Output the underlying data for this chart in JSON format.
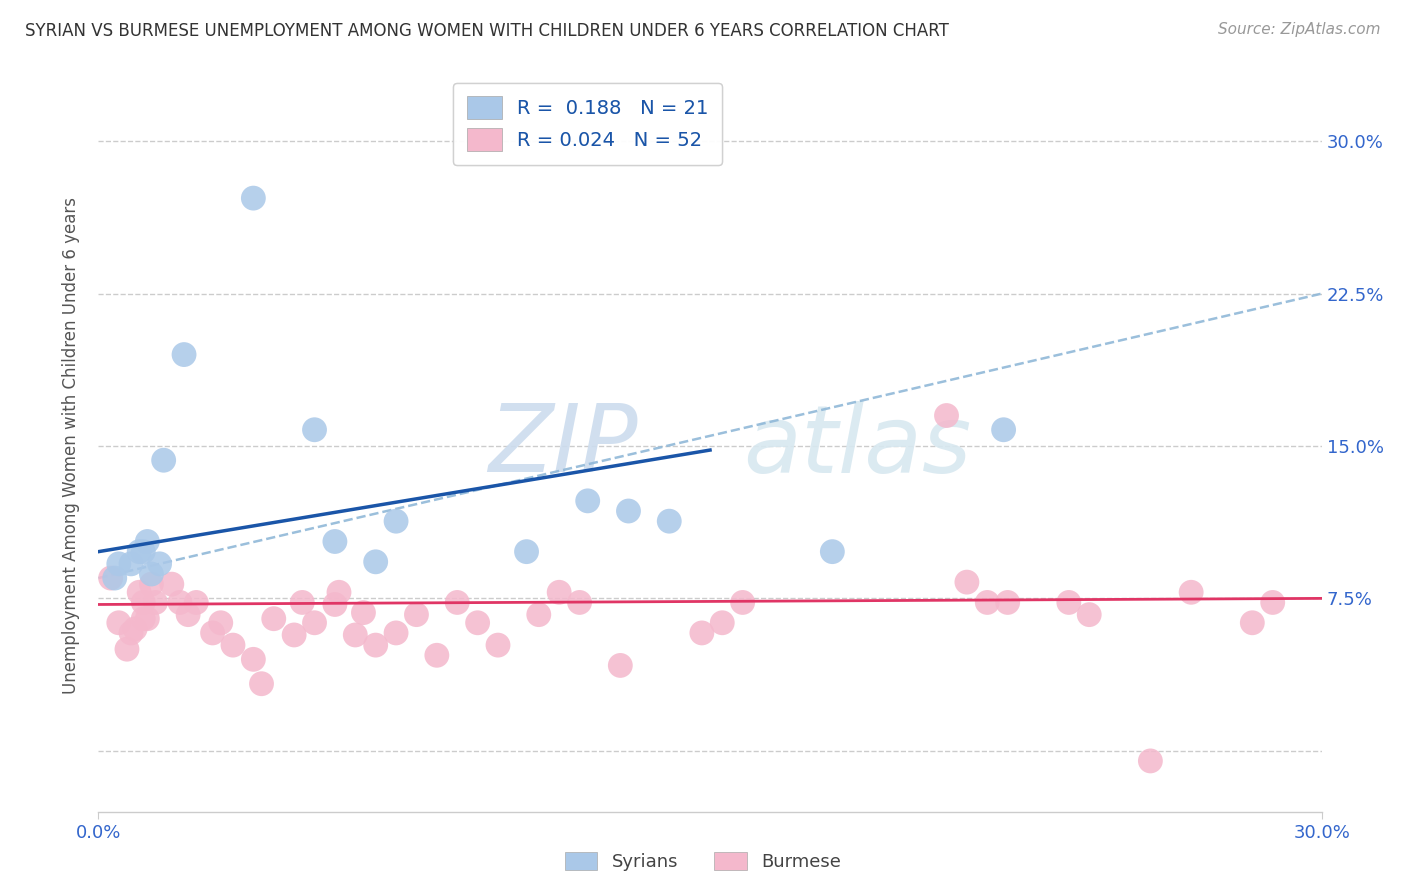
{
  "title": "SYRIAN VS BURMESE UNEMPLOYMENT AMONG WOMEN WITH CHILDREN UNDER 6 YEARS CORRELATION CHART",
  "source": "Source: ZipAtlas.com",
  "ylabel": "Unemployment Among Women with Children Under 6 years",
  "xlim": [
    0.0,
    0.3
  ],
  "ylim": [
    -0.03,
    0.33
  ],
  "xticks": [
    0.0,
    0.3
  ],
  "xticklabels": [
    "0.0%",
    "30.0%"
  ],
  "ytick_vals": [
    0.0,
    0.075,
    0.15,
    0.225,
    0.3
  ],
  "ytick_labels_right": [
    "",
    "7.5%",
    "15.0%",
    "22.5%",
    "30.0%"
  ],
  "syrian_R": 0.188,
  "syrian_N": 21,
  "burmese_R": 0.024,
  "burmese_N": 52,
  "syrian_color": "#aac8e8",
  "burmese_color": "#f4b8cc",
  "syrian_line_color": "#1a55a8",
  "burmese_line_color": "#e03565",
  "dash_line_color": "#90b8d8",
  "bg_color": "#ffffff",
  "grid_color": "#cccccc",
  "legend_text_color": "#1a55a8",
  "tick_label_color": "#3366cc",
  "syrian_x": [
    0.004,
    0.005,
    0.008,
    0.01,
    0.011,
    0.012,
    0.013,
    0.015,
    0.016,
    0.021,
    0.038,
    0.053,
    0.058,
    0.068,
    0.073,
    0.105,
    0.12,
    0.13,
    0.14,
    0.18,
    0.222
  ],
  "syrian_y": [
    0.085,
    0.092,
    0.092,
    0.098,
    0.098,
    0.103,
    0.087,
    0.092,
    0.143,
    0.195,
    0.272,
    0.158,
    0.103,
    0.093,
    0.113,
    0.098,
    0.123,
    0.118,
    0.113,
    0.098,
    0.158
  ],
  "burmese_x": [
    0.003,
    0.005,
    0.007,
    0.008,
    0.009,
    0.01,
    0.011,
    0.011,
    0.012,
    0.013,
    0.014,
    0.018,
    0.02,
    0.022,
    0.024,
    0.028,
    0.03,
    0.033,
    0.038,
    0.04,
    0.043,
    0.048,
    0.05,
    0.053,
    0.058,
    0.059,
    0.063,
    0.065,
    0.068,
    0.073,
    0.078,
    0.083,
    0.088,
    0.093,
    0.098,
    0.108,
    0.113,
    0.118,
    0.128,
    0.148,
    0.153,
    0.158,
    0.208,
    0.213,
    0.218,
    0.223,
    0.238,
    0.243,
    0.258,
    0.268,
    0.283,
    0.288
  ],
  "burmese_y": [
    0.085,
    0.063,
    0.05,
    0.058,
    0.06,
    0.078,
    0.065,
    0.073,
    0.065,
    0.082,
    0.073,
    0.082,
    0.073,
    0.067,
    0.073,
    0.058,
    0.063,
    0.052,
    0.045,
    0.033,
    0.065,
    0.057,
    0.073,
    0.063,
    0.072,
    0.078,
    0.057,
    0.068,
    0.052,
    0.058,
    0.067,
    0.047,
    0.073,
    0.063,
    0.052,
    0.067,
    0.078,
    0.073,
    0.042,
    0.058,
    0.063,
    0.073,
    0.165,
    0.083,
    0.073,
    0.073,
    0.073,
    0.067,
    -0.005,
    0.078,
    0.063,
    0.073
  ],
  "syrian_line_x": [
    0.0,
    0.15
  ],
  "syrian_line_y_start": 0.098,
  "syrian_line_y_end": 0.148,
  "burmese_line_y_start": 0.072,
  "burmese_line_y_end": 0.075,
  "dash_line_x": [
    0.0,
    0.3
  ],
  "dash_line_y_start": 0.085,
  "dash_line_y_end": 0.225
}
